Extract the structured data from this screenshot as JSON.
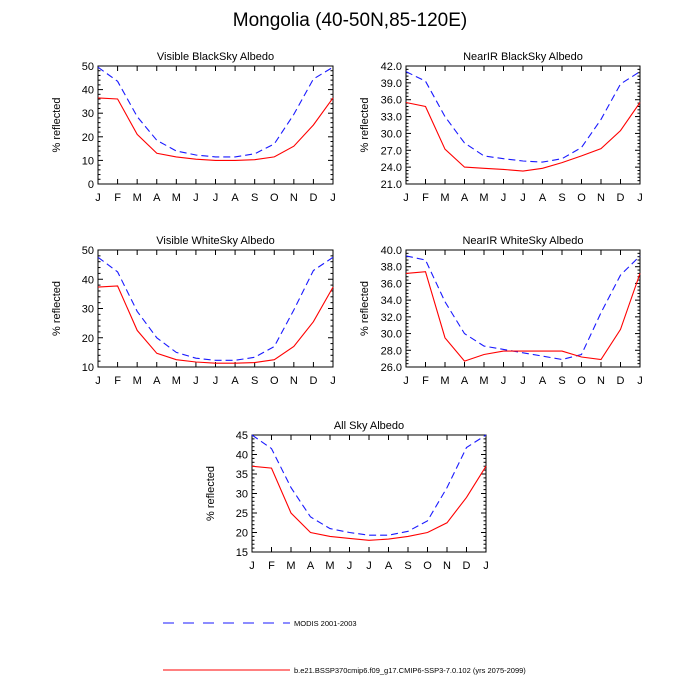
{
  "title": "Mongolia (40-50N,85-120E)",
  "colors": {
    "modis": "#1a1aff",
    "model": "#ff0000",
    "axis": "#000000"
  },
  "months": [
    "J",
    "F",
    "M",
    "A",
    "M",
    "J",
    "J",
    "A",
    "S",
    "O",
    "N",
    "D",
    "J"
  ],
  "legend": {
    "modis_label": "MODIS 2001-2003",
    "model_label": "b.e21.BSSP370cmip6.f09_g17.CMIP6-SSP3-7.0.102 (yrs 2075-2099)"
  },
  "chart_data": [
    {
      "type": "line",
      "title": "Visible BlackSky Albedo",
      "ylabel": "% reflected",
      "ylim": [
        0,
        50
      ],
      "yticks": [
        0,
        10,
        20,
        30,
        40,
        50
      ],
      "ytick_labels": [
        "0",
        "10",
        "20",
        "30",
        "40",
        "50"
      ],
      "x": [
        "J",
        "F",
        "M",
        "A",
        "M",
        "J",
        "J",
        "A",
        "S",
        "O",
        "N",
        "D",
        "J"
      ],
      "series": [
        {
          "name": "MODIS 2001-2003",
          "style": "dashed",
          "values": [
            49.5,
            43.5,
            28.5,
            18.5,
            14,
            12.3,
            11.5,
            11.5,
            12.8,
            17,
            29.5,
            44.5,
            49.5
          ]
        },
        {
          "name": "b.e21.BSSP370cmip6.f09_g17.CMIP6-SSP3-7.0.102 (yrs 2075-2099)",
          "style": "solid",
          "values": [
            36.5,
            36,
            21,
            13,
            11.5,
            10.5,
            10,
            10,
            10.3,
            11.5,
            16,
            25,
            36.5
          ]
        }
      ]
    },
    {
      "type": "line",
      "title": "NearIR BlackSky Albedo",
      "ylabel": "% reflected",
      "ylim": [
        21,
        42
      ],
      "yticks": [
        21,
        24,
        27,
        30,
        33,
        36,
        39,
        42
      ],
      "ytick_labels": [
        "21.0",
        "24.0",
        "27.0",
        "30.0",
        "33.0",
        "36.0",
        "39.0",
        "42.0"
      ],
      "x": [
        "J",
        "F",
        "M",
        "A",
        "M",
        "J",
        "J",
        "A",
        "S",
        "O",
        "N",
        "D",
        "J"
      ],
      "series": [
        {
          "name": "MODIS 2001-2003",
          "style": "dashed",
          "values": [
            41,
            39.3,
            33,
            28.3,
            26,
            25.5,
            25.1,
            24.9,
            25.5,
            27.5,
            32.5,
            38.8,
            41
          ]
        },
        {
          "name": "b.e21.BSSP370cmip6.f09_g17.CMIP6-SSP3-7.0.102 (yrs 2075-2099)",
          "style": "solid",
          "values": [
            35.5,
            34.8,
            27.2,
            24,
            23.8,
            23.6,
            23.3,
            23.8,
            24.8,
            26,
            27.3,
            30.5,
            35.5
          ]
        }
      ]
    },
    {
      "type": "line",
      "title": "Visible WhiteSky Albedo",
      "ylabel": "% reflected",
      "ylim": [
        10,
        50
      ],
      "yticks": [
        10,
        20,
        30,
        40,
        50
      ],
      "ytick_labels": [
        "10",
        "20",
        "30",
        "40",
        "50"
      ],
      "x": [
        "J",
        "F",
        "M",
        "A",
        "M",
        "J",
        "J",
        "A",
        "S",
        "O",
        "N",
        "D",
        "J"
      ],
      "series": [
        {
          "name": "MODIS 2001-2003",
          "style": "dashed",
          "values": [
            47.5,
            42.5,
            29,
            20,
            15,
            13,
            12.3,
            12.3,
            13.3,
            17,
            29.5,
            43,
            47.5
          ]
        },
        {
          "name": "b.e21.BSSP370cmip6.f09_g17.CMIP6-SSP3-7.0.102 (yrs 2075-2099)",
          "style": "solid",
          "values": [
            37.3,
            37.7,
            22.5,
            14.7,
            12.5,
            11.7,
            11.3,
            11.3,
            11.5,
            12.5,
            17,
            25.5,
            37.3
          ]
        }
      ]
    },
    {
      "type": "line",
      "title": "NearIR WhiteSky Albedo",
      "ylabel": "% reflected",
      "ylim": [
        26,
        40
      ],
      "yticks": [
        26,
        28,
        30,
        32,
        34,
        36,
        38,
        40
      ],
      "ytick_labels": [
        "26.0",
        "28.0",
        "30.0",
        "32.0",
        "34.0",
        "36.0",
        "38.0",
        "40.0"
      ],
      "x": [
        "J",
        "F",
        "M",
        "A",
        "M",
        "J",
        "J",
        "A",
        "S",
        "O",
        "N",
        "D",
        "J"
      ],
      "series": [
        {
          "name": "MODIS 2001-2003",
          "style": "dashed",
          "values": [
            39.3,
            38.8,
            33.8,
            30,
            28.5,
            28.1,
            27.7,
            27.3,
            26.9,
            27.5,
            32.5,
            37,
            39.3
          ]
        },
        {
          "name": "b.e21.BSSP370cmip6.f09_g17.CMIP6-SSP3-7.0.102 (yrs 2075-2099)",
          "style": "solid",
          "values": [
            37.2,
            37.4,
            29.5,
            26.7,
            27.5,
            27.9,
            27.9,
            27.9,
            27.9,
            27.2,
            26.9,
            30.5,
            37.2
          ]
        }
      ]
    },
    {
      "type": "line",
      "title": "All Sky Albedo",
      "ylabel": "% reflected",
      "ylim": [
        15,
        45
      ],
      "yticks": [
        15,
        20,
        25,
        30,
        35,
        40,
        45
      ],
      "ytick_labels": [
        "15",
        "20",
        "25",
        "30",
        "35",
        "40",
        "45"
      ],
      "x": [
        "J",
        "F",
        "M",
        "A",
        "M",
        "J",
        "J",
        "A",
        "S",
        "O",
        "N",
        "D",
        "J"
      ],
      "series": [
        {
          "name": "MODIS 2001-2003",
          "style": "dashed",
          "values": [
            45,
            41.5,
            31.5,
            24,
            21,
            20,
            19.3,
            19.3,
            20.3,
            23,
            31.5,
            41.8,
            45
          ]
        },
        {
          "name": "b.e21.BSSP370cmip6.f09_g17.CMIP6-SSP3-7.0.102 (yrs 2075-2099)",
          "style": "solid",
          "values": [
            37,
            36.5,
            25,
            20,
            19,
            18.5,
            18,
            18.3,
            19,
            20,
            22.5,
            29,
            37
          ]
        }
      ]
    }
  ]
}
